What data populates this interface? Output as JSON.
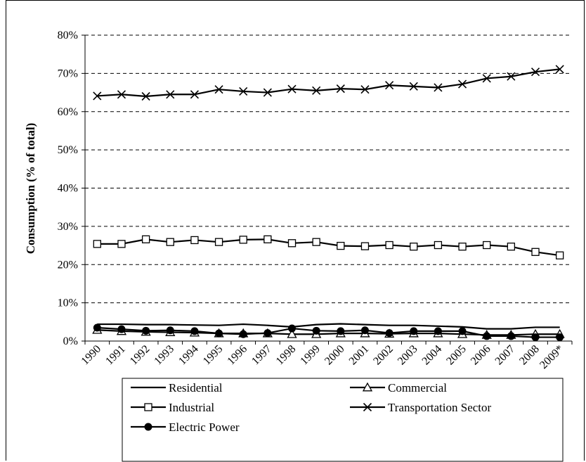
{
  "chart_data": {
    "type": "line",
    "title": "",
    "xlabel": "",
    "ylabel": "Consumption (% of total)",
    "ylim": [
      0,
      80
    ],
    "yticks": [
      "0%",
      "10%",
      "20%",
      "30%",
      "40%",
      "50%",
      "60%",
      "70%",
      "80%"
    ],
    "ytick_values": [
      0,
      10,
      20,
      30,
      40,
      50,
      60,
      70,
      80
    ],
    "categories": [
      "1990",
      "1991",
      "1992",
      "1993",
      "1994",
      "1995",
      "1996",
      "1997",
      "1998",
      "1999",
      "2000",
      "2001",
      "2002",
      "2003",
      "2004",
      "2005",
      "2006",
      "2007",
      "2008",
      "2009*"
    ],
    "grid": "horizontal-dashed",
    "legend_position": "bottom",
    "series": [
      {
        "name": "Residential",
        "marker": "none",
        "values": [
          4.4,
          4.4,
          4.3,
          4.3,
          4.2,
          4.1,
          4.4,
          4.1,
          3.7,
          4.3,
          4.5,
          4.3,
          4.1,
          4.1,
          3.9,
          3.7,
          3.2,
          3.2,
          3.6,
          3.6
        ]
      },
      {
        "name": "Commercial",
        "marker": "triangle",
        "values": [
          2.9,
          2.6,
          2.4,
          2.3,
          2.2,
          2.0,
          2.0,
          2.0,
          1.8,
          1.8,
          2.0,
          2.0,
          1.9,
          2.0,
          2.0,
          1.8,
          1.6,
          1.6,
          1.8,
          1.8
        ]
      },
      {
        "name": "Industrial",
        "marker": "square",
        "values": [
          25.4,
          25.4,
          26.6,
          25.9,
          26.4,
          25.9,
          26.5,
          26.6,
          25.6,
          25.9,
          24.9,
          24.8,
          25.1,
          24.7,
          25.1,
          24.7,
          25.1,
          24.7,
          23.3,
          22.4
        ]
      },
      {
        "name": "Transportation Sector",
        "marker": "x",
        "values": [
          64.1,
          64.5,
          64.0,
          64.5,
          64.5,
          65.8,
          65.3,
          65.0,
          65.9,
          65.5,
          66.0,
          65.8,
          66.9,
          66.6,
          66.3,
          67.2,
          68.7,
          69.2,
          70.4,
          71.1
        ]
      },
      {
        "name": "Electric Power",
        "marker": "circle",
        "values": [
          3.5,
          3.1,
          2.7,
          2.8,
          2.6,
          2.0,
          1.8,
          2.1,
          3.3,
          2.7,
          2.6,
          2.8,
          2.1,
          2.6,
          2.6,
          2.6,
          1.3,
          1.3,
          1.0,
          1.0
        ]
      }
    ]
  }
}
